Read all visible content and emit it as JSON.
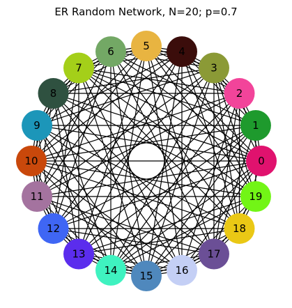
{
  "title": "ER Random Network, N=20; p=0.7",
  "graph": {
    "nodes": [
      {
        "label": "0",
        "color": "#e0126e"
      },
      {
        "label": "1",
        "color": "#1e9a2d"
      },
      {
        "label": "2",
        "color": "#f2449a"
      },
      {
        "label": "3",
        "color": "#8b9a36"
      },
      {
        "label": "4",
        "color": "#3b0d0b"
      },
      {
        "label": "5",
        "color": "#e8b441"
      },
      {
        "label": "6",
        "color": "#73a865"
      },
      {
        "label": "7",
        "color": "#a4cf19"
      },
      {
        "label": "8",
        "color": "#2f5140"
      },
      {
        "label": "9",
        "color": "#1c96b9"
      },
      {
        "label": "10",
        "color": "#c9480b"
      },
      {
        "label": "11",
        "color": "#a4739f"
      },
      {
        "label": "12",
        "color": "#3f66f4"
      },
      {
        "label": "13",
        "color": "#5b2ded"
      },
      {
        "label": "14",
        "color": "#3ff2c0"
      },
      {
        "label": "15",
        "color": "#4f88bd"
      },
      {
        "label": "16",
        "color": "#c4cff5"
      },
      {
        "label": "17",
        "color": "#6b4f96"
      },
      {
        "label": "18",
        "color": "#eac815"
      },
      {
        "label": "19",
        "color": "#72f516"
      }
    ],
    "edges": [
      [
        0,
        1
      ],
      [
        0,
        2
      ],
      [
        0,
        3
      ],
      [
        0,
        5
      ],
      [
        0,
        6
      ],
      [
        0,
        7
      ],
      [
        0,
        8
      ],
      [
        0,
        9
      ],
      [
        0,
        10
      ],
      [
        0,
        11
      ],
      [
        0,
        12
      ],
      [
        0,
        14
      ],
      [
        0,
        15
      ],
      [
        0,
        16
      ],
      [
        0,
        18
      ],
      [
        1,
        2
      ],
      [
        1,
        3
      ],
      [
        1,
        4
      ],
      [
        1,
        6
      ],
      [
        1,
        7
      ],
      [
        1,
        9
      ],
      [
        1,
        10
      ],
      [
        1,
        12
      ],
      [
        1,
        13
      ],
      [
        1,
        14
      ],
      [
        1,
        15
      ],
      [
        1,
        17
      ],
      [
        1,
        19
      ],
      [
        2,
        3
      ],
      [
        2,
        4
      ],
      [
        2,
        5
      ],
      [
        2,
        7
      ],
      [
        2,
        8
      ],
      [
        2,
        10
      ],
      [
        2,
        11
      ],
      [
        2,
        13
      ],
      [
        2,
        14
      ],
      [
        2,
        16
      ],
      [
        2,
        17
      ],
      [
        2,
        18
      ],
      [
        3,
        4
      ],
      [
        3,
        5
      ],
      [
        3,
        6
      ],
      [
        3,
        8
      ],
      [
        3,
        9
      ],
      [
        3,
        11
      ],
      [
        3,
        12
      ],
      [
        3,
        14
      ],
      [
        3,
        15
      ],
      [
        3,
        17
      ],
      [
        3,
        18
      ],
      [
        3,
        19
      ],
      [
        4,
        5
      ],
      [
        4,
        6
      ],
      [
        4,
        7
      ],
      [
        4,
        9
      ],
      [
        4,
        10
      ],
      [
        4,
        12
      ],
      [
        4,
        13
      ],
      [
        4,
        15
      ],
      [
        4,
        16
      ],
      [
        4,
        18
      ],
      [
        4,
        19
      ],
      [
        5,
        6
      ],
      [
        5,
        7
      ],
      [
        5,
        8
      ],
      [
        5,
        10
      ],
      [
        5,
        11
      ],
      [
        5,
        13
      ],
      [
        5,
        14
      ],
      [
        5,
        16
      ],
      [
        5,
        17
      ],
      [
        5,
        19
      ],
      [
        6,
        7
      ],
      [
        6,
        8
      ],
      [
        6,
        9
      ],
      [
        6,
        11
      ],
      [
        6,
        12
      ],
      [
        6,
        14
      ],
      [
        6,
        15
      ],
      [
        6,
        17
      ],
      [
        6,
        18
      ],
      [
        7,
        8
      ],
      [
        7,
        9
      ],
      [
        7,
        10
      ],
      [
        7,
        12
      ],
      [
        7,
        13
      ],
      [
        7,
        15
      ],
      [
        7,
        16
      ],
      [
        7,
        18
      ],
      [
        7,
        19
      ],
      [
        8,
        9
      ],
      [
        8,
        10
      ],
      [
        8,
        11
      ],
      [
        8,
        13
      ],
      [
        8,
        14
      ],
      [
        8,
        16
      ],
      [
        8,
        17
      ],
      [
        8,
        19
      ],
      [
        9,
        10
      ],
      [
        9,
        11
      ],
      [
        9,
        12
      ],
      [
        9,
        14
      ],
      [
        9,
        15
      ],
      [
        9,
        17
      ],
      [
        9,
        18
      ],
      [
        10,
        11
      ],
      [
        10,
        12
      ],
      [
        10,
        13
      ],
      [
        10,
        15
      ],
      [
        10,
        16
      ],
      [
        10,
        18
      ],
      [
        10,
        19
      ],
      [
        11,
        12
      ],
      [
        11,
        13
      ],
      [
        11,
        14
      ],
      [
        11,
        16
      ],
      [
        11,
        17
      ],
      [
        11,
        19
      ],
      [
        12,
        13
      ],
      [
        12,
        14
      ],
      [
        12,
        15
      ],
      [
        12,
        17
      ],
      [
        12,
        18
      ],
      [
        13,
        14
      ],
      [
        13,
        15
      ],
      [
        13,
        16
      ],
      [
        13,
        18
      ],
      [
        13,
        19
      ],
      [
        14,
        15
      ],
      [
        14,
        16
      ],
      [
        14,
        17
      ],
      [
        14,
        19
      ],
      [
        15,
        16
      ],
      [
        15,
        17
      ],
      [
        15,
        18
      ],
      [
        16,
        17
      ],
      [
        16,
        18
      ],
      [
        16,
        19
      ],
      [
        17,
        18
      ],
      [
        17,
        19
      ],
      [
        18,
        19
      ]
    ]
  }
}
